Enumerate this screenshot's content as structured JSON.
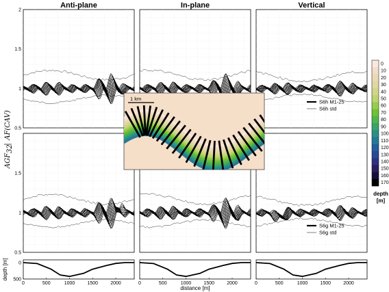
{
  "chart_data": {
    "type": "line",
    "panels": {
      "columns": [
        "Anti-plane",
        "In-plane",
        "Vertical"
      ],
      "ylabel_a": "AGF",
      "ylabel_a_sub": "32",
      "ylabel_b": "AF(CAV)",
      "xlabel": "distance [m]",
      "xlim": [
        0,
        2400
      ],
      "xticks": [
        "0",
        "500",
        "1000",
        "1500",
        "2000"
      ],
      "xtick_values": [
        0,
        500,
        1000,
        1500,
        2000
      ],
      "ylim": [
        0.5,
        2
      ],
      "yticks_top": [
        "2",
        "1.5",
        "1",
        "0.5"
      ],
      "yticks_bottom": [
        "1.5",
        "1",
        "0.5"
      ],
      "legend_top": [
        "S6h M1-25",
        "S6h std"
      ],
      "legend_bottom": [
        "S6g M1-25",
        "S6g std"
      ]
    },
    "topography": {
      "ylabel": "depth [m]",
      "yticks": [
        "0",
        "500"
      ],
      "x": [
        0,
        300,
        600,
        800,
        1000,
        1300,
        1500,
        1800,
        2000,
        2200,
        2400
      ],
      "depth": [
        0,
        30,
        200,
        380,
        420,
        330,
        200,
        90,
        25,
        0,
        0
      ]
    },
    "colorbar": {
      "title": "depth",
      "unit": "[m]",
      "labels": [
        "0",
        "10",
        "20",
        "30",
        "40",
        "50",
        "60",
        "70",
        "80",
        "90",
        "100",
        "110",
        "120",
        "130",
        "140",
        "150",
        "160",
        "170"
      ],
      "colors": [
        "#f9e8dc",
        "#f3dcc8",
        "#ead9b4",
        "#e0d7a2",
        "#d2d58a",
        "#bdd470",
        "#98cc4c",
        "#6fc235",
        "#4fb54a",
        "#3aa36a",
        "#2a8f86",
        "#247a96",
        "#235f9a",
        "#2a4895",
        "#2f327f",
        "#2a1f5e",
        "#180f38",
        "#000000"
      ]
    },
    "inset": {
      "scale_label": "1 km"
    }
  }
}
